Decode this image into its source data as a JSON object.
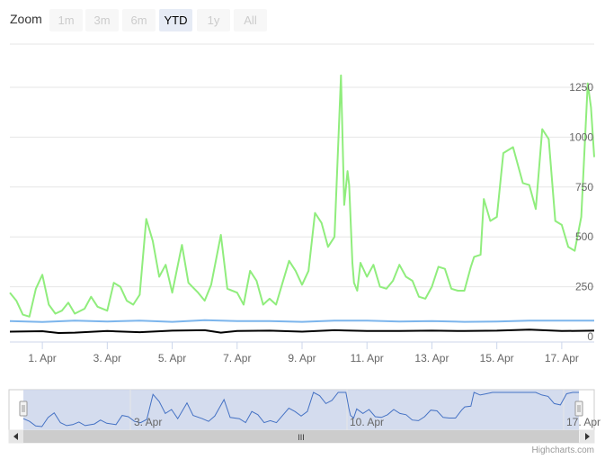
{
  "zoom": {
    "label": "Zoom",
    "buttons": [
      {
        "label": "1m",
        "active": false
      },
      {
        "label": "3m",
        "active": false
      },
      {
        "label": "6m",
        "active": false
      },
      {
        "label": "YTD",
        "active": true
      },
      {
        "label": "1y",
        "active": false
      },
      {
        "label": "All",
        "active": false
      }
    ]
  },
  "credit": "Highcharts.com",
  "navigator": {
    "tick_labels": [
      "3. Apr",
      "10. Apr",
      "17. Apr"
    ],
    "scrollbar_grip": "III"
  },
  "chart_data": {
    "type": "line",
    "title": "",
    "xlabel": "",
    "ylabel": "",
    "x_ticks": [
      "1. Apr",
      "3. Apr",
      "5. Apr",
      "7. Apr",
      "9. Apr",
      "11. Apr",
      "13. Apr",
      "15. Apr",
      "17. Apr"
    ],
    "y_ticks": [
      "0",
      "250",
      "500",
      "750",
      "1000",
      "1250"
    ],
    "ylim": [
      0,
      1250
    ],
    "y_axis_side": "right",
    "grid": true,
    "series_colors": [
      "#90ed7d",
      "#7cb5ec",
      "#000000"
    ],
    "navigator_color": "#4572c4",
    "series": [
      {
        "x": [
          0.0,
          0.2,
          0.4,
          0.6,
          0.8,
          1.0,
          1.2,
          1.4,
          1.6,
          1.8,
          2.0,
          2.3,
          2.5,
          2.7,
          3.0,
          3.2,
          3.4,
          3.6,
          3.8,
          4.0,
          4.2,
          4.4,
          4.6,
          4.8,
          5.0,
          5.3,
          5.5,
          5.8,
          6.0,
          6.2,
          6.5,
          6.7,
          7.0,
          7.2,
          7.4,
          7.6,
          7.8,
          8.0,
          8.2,
          8.4,
          8.6,
          8.8,
          9.0,
          9.2,
          9.4,
          9.6,
          9.8,
          10.0,
          10.2,
          10.3,
          10.4,
          10.45,
          10.55,
          10.6,
          10.7,
          10.8,
          11.0,
          11.2,
          11.4,
          11.6,
          11.8,
          12.0,
          12.2,
          12.4,
          12.6,
          12.8,
          13.0,
          13.2,
          13.4,
          13.6,
          13.8,
          14.0,
          14.2,
          14.3,
          14.5,
          14.6,
          14.8,
          15.0,
          15.2,
          15.5,
          15.8,
          16.0,
          16.2,
          16.4,
          16.6,
          16.8,
          17.0,
          17.2,
          17.4,
          17.6,
          17.8,
          17.9,
          18.0
        ],
        "values": [
          220,
          180,
          110,
          100,
          240,
          310,
          160,
          115,
          130,
          170,
          115,
          140,
          200,
          150,
          130,
          270,
          250,
          180,
          160,
          210,
          590,
          480,
          300,
          360,
          220,
          460,
          270,
          220,
          180,
          260,
          510,
          240,
          220,
          160,
          330,
          280,
          160,
          190,
          160,
          270,
          380,
          330,
          260,
          330,
          620,
          570,
          450,
          500,
          1310,
          660,
          830,
          760,
          370,
          270,
          230,
          370,
          300,
          360,
          250,
          240,
          280,
          360,
          300,
          280,
          200,
          190,
          250,
          350,
          340,
          240,
          230,
          230,
          350,
          400,
          410,
          690,
          580,
          600,
          920,
          950,
          770,
          760,
          640,
          1040,
          990,
          580,
          560,
          450,
          430,
          600,
          1270,
          1150,
          900
        ]
      },
      {
        "x": [
          0.0,
          1.0,
          2.0,
          3.0,
          4.0,
          5.0,
          6.0,
          7.0,
          8.0,
          9.0,
          10.0,
          11.0,
          12.0,
          13.0,
          14.0,
          15.0,
          16.0,
          17.0,
          18.0
        ],
        "values": [
          78,
          73,
          80,
          76,
          80,
          74,
          82,
          78,
          78,
          74,
          80,
          80,
          76,
          78,
          74,
          76,
          80,
          80,
          80
        ]
      },
      {
        "x": [
          0.0,
          1.0,
          1.5,
          2.0,
          3.0,
          4.0,
          5.0,
          6.0,
          6.5,
          7.0,
          8.0,
          9.0,
          10.0,
          11.0,
          12.0,
          13.0,
          14.0,
          15.0,
          16.0,
          17.0,
          18.0
        ],
        "values": [
          25,
          27,
          18,
          20,
          28,
          22,
          30,
          32,
          20,
          28,
          30,
          25,
          32,
          28,
          28,
          30,
          28,
          30,
          35,
          28,
          30
        ]
      }
    ]
  }
}
